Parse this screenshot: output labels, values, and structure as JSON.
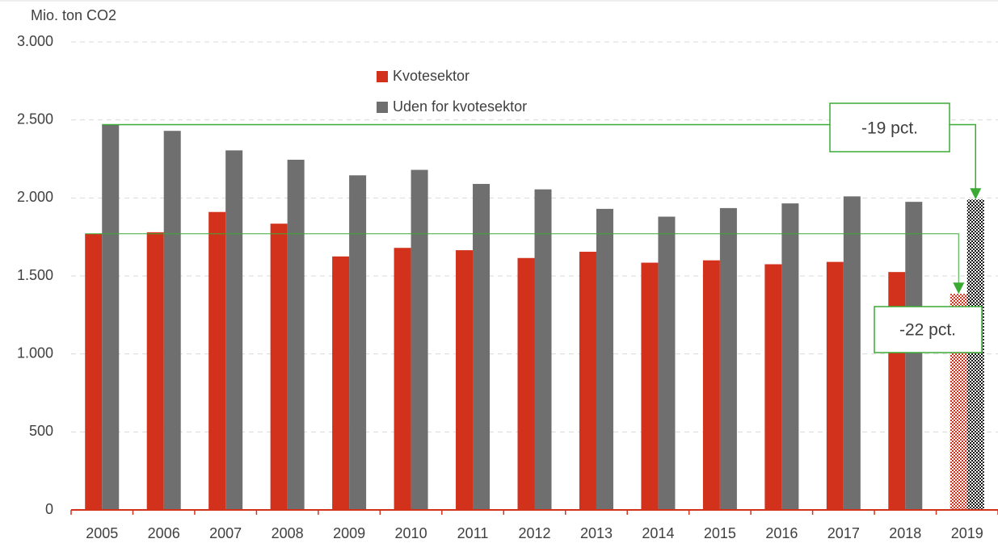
{
  "chart_data": {
    "type": "bar",
    "y_label": "Mio. ton CO2",
    "categories": [
      "2005",
      "2006",
      "2007",
      "2008",
      "2009",
      "2010",
      "2011",
      "2012",
      "2013",
      "2014",
      "2015",
      "2016",
      "2017",
      "2018",
      "2019"
    ],
    "series": [
      {
        "name": "Kvotesektor",
        "color": "#d2311c",
        "values": [
          1770,
          1780,
          1910,
          1835,
          1625,
          1680,
          1665,
          1615,
          1655,
          1585,
          1600,
          1575,
          1590,
          1525,
          1385
        ]
      },
      {
        "name": "Uden for kvotesektor",
        "color": "#6f6f6f",
        "values": [
          2470,
          2430,
          2305,
          2245,
          2145,
          2180,
          2090,
          2055,
          1930,
          1880,
          1935,
          1965,
          2010,
          1975,
          1990
        ]
      }
    ],
    "ylim": [
      0,
      3000
    ],
    "yticks": [
      0,
      500,
      {
        "value": 1000,
        "label": "1.000"
      },
      {
        "value": 1500,
        "label": "1.500"
      },
      {
        "value": 2000,
        "label": "2.000"
      },
      {
        "value": 2500,
        "label": "2.500"
      },
      {
        "value": 3000,
        "label": "3.000"
      }
    ],
    "grid": true,
    "annotations": [
      "-19 pct.",
      "-22 pct."
    ],
    "annotation_color": "#3aaa35"
  }
}
